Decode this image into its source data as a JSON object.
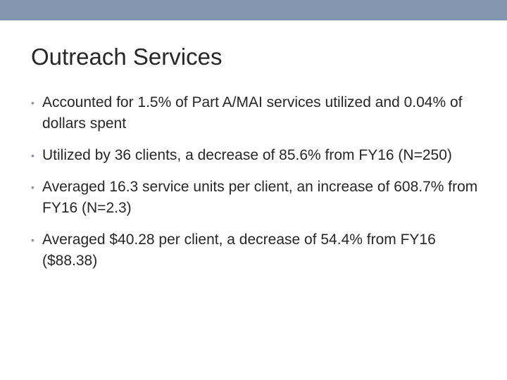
{
  "slide": {
    "title": "Outreach Services",
    "accent_color": "#8497b0",
    "bullet_marker": "•",
    "bullets": [
      {
        "text": "Accounted for 1.5% of Part A/MAI services utilized and 0.04% of dollars spent"
      },
      {
        "text": "Utilized by 36 clients, a decrease of 85.6% from FY16 (N=250)"
      },
      {
        "text": "Averaged 16.3 service units per client, an increase of 608.7% from FY16 (N=2.3)"
      },
      {
        "text": "Averaged $40.28 per client, a decrease of 54.4% from FY16 ($88.38)"
      }
    ]
  }
}
